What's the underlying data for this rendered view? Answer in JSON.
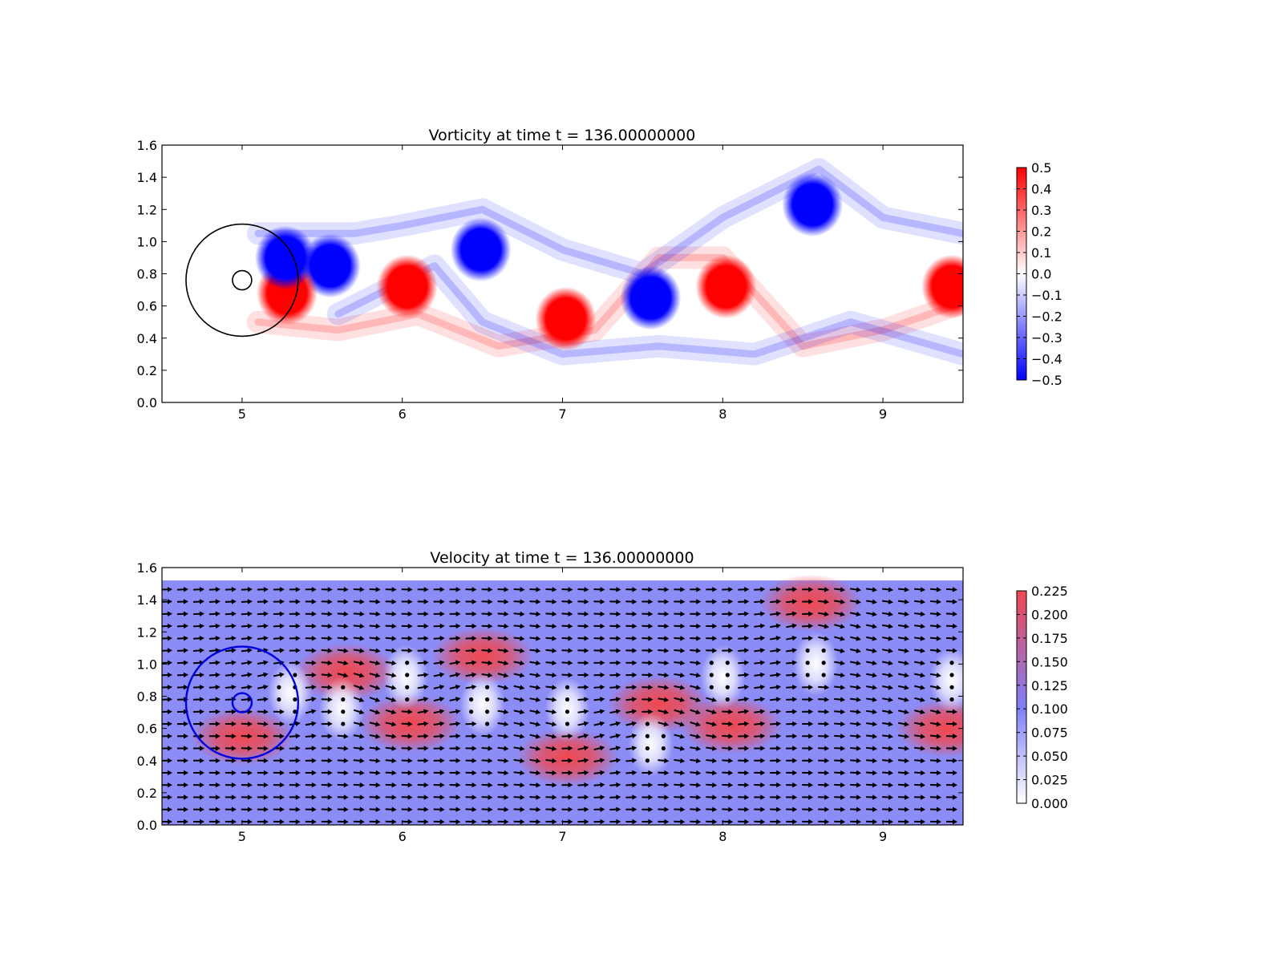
{
  "chart_data": [
    {
      "type": "heatmap",
      "title": "Vorticity at time t =   136.00000000",
      "xlabel": "",
      "ylabel": "",
      "xlim": [
        4.5,
        9.5
      ],
      "ylim": [
        0.0,
        1.6
      ],
      "xticks": [
        "5",
        "6",
        "7",
        "8",
        "9"
      ],
      "yticks": [
        "0.0",
        "0.2",
        "0.4",
        "0.6",
        "0.8",
        "1.0",
        "1.2",
        "1.4",
        "1.6"
      ],
      "colorbar": {
        "min": -0.5,
        "max": 0.5,
        "ticks": [
          "0.5",
          "0.4",
          "0.3",
          "0.2",
          "0.1",
          "0.0",
          "−0.1",
          "−0.2",
          "−0.3",
          "−0.4",
          "−0.5"
        ],
        "colors": [
          "#0000ff",
          "#ffffff",
          "#ff0000"
        ]
      },
      "vortices": [
        {
          "x": 5.55,
          "y": 0.85,
          "value": -0.5
        },
        {
          "x": 6.03,
          "y": 0.72,
          "value": 0.5
        },
        {
          "x": 6.49,
          "y": 0.95,
          "value": -0.5
        },
        {
          "x": 7.02,
          "y": 0.52,
          "value": 0.5
        },
        {
          "x": 7.55,
          "y": 0.65,
          "value": -0.5
        },
        {
          "x": 8.02,
          "y": 0.72,
          "value": 0.5
        },
        {
          "x": 8.56,
          "y": 1.23,
          "value": -0.5
        },
        {
          "x": 9.43,
          "y": 0.72,
          "value": 0.5
        },
        {
          "x": 5.28,
          "y": 0.68,
          "value": 0.5
        },
        {
          "x": 5.27,
          "y": 0.9,
          "value": -0.5
        }
      ],
      "circles": [
        {
          "cx": 5.0,
          "cy": 0.76,
          "r": 0.35
        },
        {
          "cx": 5.0,
          "cy": 0.76,
          "r": 0.06
        }
      ]
    },
    {
      "type": "heatmap",
      "title": "Velocity at time t =   136.00000000",
      "xlabel": "",
      "ylabel": "",
      "xlim": [
        4.5,
        9.5
      ],
      "ylim": [
        0.0,
        1.6
      ],
      "xticks": [
        "5",
        "6",
        "7",
        "8",
        "9"
      ],
      "yticks": [
        "0.0",
        "0.2",
        "0.4",
        "0.6",
        "0.8",
        "1.0",
        "1.2",
        "1.4",
        "1.6"
      ],
      "field_ylim": [
        0.0,
        1.52
      ],
      "colorbar": {
        "min": 0.0,
        "max": 0.225,
        "ticks": [
          "0.225",
          "0.200",
          "0.175",
          "0.150",
          "0.125",
          "0.100",
          "0.075",
          "0.050",
          "0.025",
          "0.000"
        ],
        "colors": [
          "#ffffff",
          "#7f7ff9",
          "#f04850"
        ]
      },
      "background_speed": 0.1,
      "fast_regions": [
        {
          "x": 5.0,
          "y": 0.55,
          "value": 0.17
        },
        {
          "x": 5.65,
          "y": 0.95,
          "value": 0.18
        },
        {
          "x": 6.05,
          "y": 0.63,
          "value": 0.2
        },
        {
          "x": 6.5,
          "y": 1.05,
          "value": 0.22
        },
        {
          "x": 7.03,
          "y": 0.42,
          "value": 0.22
        },
        {
          "x": 7.6,
          "y": 0.75,
          "value": 0.2
        },
        {
          "x": 8.05,
          "y": 0.62,
          "value": 0.22
        },
        {
          "x": 8.55,
          "y": 1.38,
          "value": 0.225
        },
        {
          "x": 9.4,
          "y": 0.6,
          "value": 0.19
        }
      ],
      "slow_regions": [
        {
          "x": 5.3,
          "y": 0.82,
          "value": 0.0
        },
        {
          "x": 5.62,
          "y": 0.72,
          "value": 0.0
        },
        {
          "x": 6.02,
          "y": 0.92,
          "value": 0.0
        },
        {
          "x": 6.5,
          "y": 0.75,
          "value": 0.0
        },
        {
          "x": 7.03,
          "y": 0.72,
          "value": 0.0
        },
        {
          "x": 7.55,
          "y": 0.5,
          "value": 0.0
        },
        {
          "x": 8.0,
          "y": 0.92,
          "value": 0.0
        },
        {
          "x": 8.58,
          "y": 1.0,
          "value": 0.0
        },
        {
          "x": 9.43,
          "y": 0.9,
          "value": 0.0
        }
      ],
      "circles": [
        {
          "cx": 5.0,
          "cy": 0.76,
          "r": 0.35
        },
        {
          "cx": 5.0,
          "cy": 0.76,
          "r": 0.06
        }
      ]
    }
  ]
}
